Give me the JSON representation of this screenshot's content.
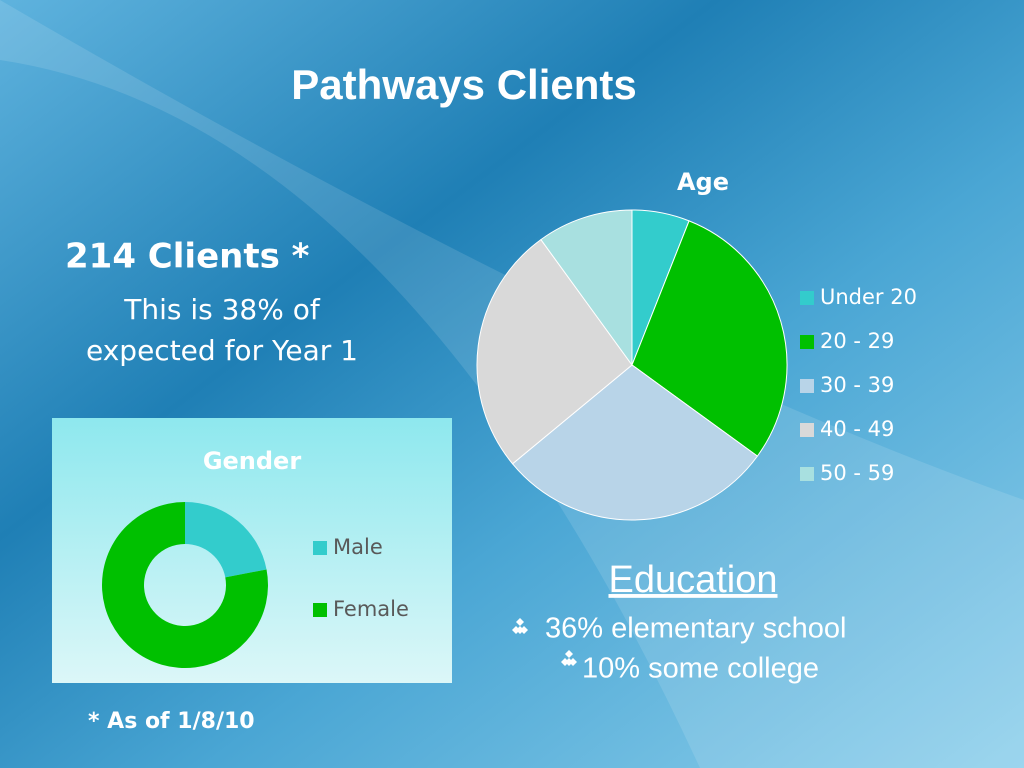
{
  "title": "Pathways Clients",
  "clients": {
    "headline": "214 Clients *",
    "line1": "This is 38% of",
    "line2": "expected for Year 1"
  },
  "footnote": "* As of 1/8/10",
  "education": {
    "heading": "Education",
    "items": [
      "36% elementary  school",
      "10% some college"
    ]
  },
  "chart_data": [
    {
      "type": "pie",
      "title": "Age",
      "categories": [
        "Under 20",
        "20 - 29",
        "30 - 39",
        "40 - 49",
        "50 - 59"
      ],
      "values": [
        6,
        29,
        29,
        26,
        10
      ],
      "colors": [
        "#33cccc",
        "#00c000",
        "#b8d4e8",
        "#d9d9d9",
        "#a8e0e0"
      ]
    },
    {
      "type": "donut",
      "title": "Gender",
      "categories": [
        "Male",
        "Female"
      ],
      "values": [
        22,
        78
      ],
      "colors": [
        "#33cccc",
        "#00c000"
      ]
    }
  ]
}
